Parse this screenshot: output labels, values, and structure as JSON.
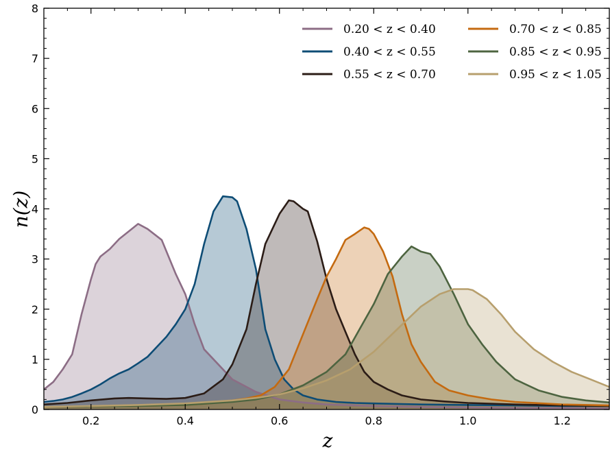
{
  "chart_data": {
    "type": "area",
    "xlabel": "z",
    "ylabel": "n(z)",
    "xlim": [
      0.1,
      1.3
    ],
    "ylim": [
      0,
      8
    ],
    "x_ticks": [
      0.2,
      0.4,
      0.6,
      0.8,
      1.0,
      1.2
    ],
    "x_tick_labels": [
      "0.2",
      "0.4",
      "0.6",
      "0.8",
      "1.0",
      "1.2"
    ],
    "y_ticks": [
      0,
      1,
      2,
      3,
      4,
      5,
      6,
      7,
      8
    ],
    "y_tick_labels": [
      "0",
      "1",
      "2",
      "3",
      "4",
      "5",
      "6",
      "7",
      "8"
    ],
    "grid": false,
    "legend_position": "top-right",
    "legend_columns": 2,
    "series": [
      {
        "name": "0.20 < z < 0.40",
        "color": "#8c6d85",
        "x": [
          0.1,
          0.12,
          0.14,
          0.16,
          0.18,
          0.2,
          0.21,
          0.22,
          0.24,
          0.26,
          0.28,
          0.3,
          0.32,
          0.35,
          0.38,
          0.4,
          0.42,
          0.44,
          0.47,
          0.5,
          0.55,
          0.6,
          0.65,
          0.7,
          0.8,
          0.9,
          1.0,
          1.1,
          1.2,
          1.3
        ],
        "y": [
          0.4,
          0.55,
          0.8,
          1.1,
          1.9,
          2.6,
          2.9,
          3.05,
          3.2,
          3.4,
          3.55,
          3.7,
          3.6,
          3.38,
          2.7,
          2.3,
          1.7,
          1.2,
          0.9,
          0.6,
          0.35,
          0.2,
          0.14,
          0.1,
          0.07,
          0.05,
          0.04,
          0.03,
          0.03,
          0.02
        ]
      },
      {
        "name": "0.40 < z < 0.55",
        "color": "#0d4c75",
        "x": [
          0.1,
          0.12,
          0.14,
          0.16,
          0.18,
          0.2,
          0.22,
          0.24,
          0.26,
          0.28,
          0.3,
          0.32,
          0.34,
          0.36,
          0.38,
          0.4,
          0.42,
          0.44,
          0.46,
          0.48,
          0.5,
          0.51,
          0.53,
          0.55,
          0.57,
          0.59,
          0.61,
          0.63,
          0.65,
          0.68,
          0.72,
          0.76,
          0.8,
          0.9,
          1.0,
          1.1,
          1.2,
          1.3
        ],
        "y": [
          0.15,
          0.17,
          0.2,
          0.25,
          0.32,
          0.4,
          0.5,
          0.62,
          0.72,
          0.8,
          0.92,
          1.05,
          1.25,
          1.45,
          1.7,
          2.0,
          2.5,
          3.3,
          3.95,
          4.25,
          4.23,
          4.15,
          3.6,
          2.8,
          1.6,
          1.0,
          0.6,
          0.4,
          0.28,
          0.2,
          0.15,
          0.13,
          0.12,
          0.1,
          0.09,
          0.08,
          0.07,
          0.07
        ]
      },
      {
        "name": "0.55 < z < 0.70",
        "color": "#2b1c16",
        "x": [
          0.1,
          0.15,
          0.2,
          0.25,
          0.28,
          0.32,
          0.36,
          0.4,
          0.44,
          0.48,
          0.5,
          0.53,
          0.55,
          0.57,
          0.58,
          0.6,
          0.62,
          0.63,
          0.65,
          0.66,
          0.68,
          0.7,
          0.72,
          0.74,
          0.76,
          0.78,
          0.8,
          0.83,
          0.86,
          0.9,
          0.95,
          1.0,
          1.1,
          1.2,
          1.3
        ],
        "y": [
          0.1,
          0.13,
          0.18,
          0.22,
          0.23,
          0.22,
          0.21,
          0.23,
          0.32,
          0.6,
          0.9,
          1.6,
          2.5,
          3.3,
          3.5,
          3.9,
          4.17,
          4.15,
          4.0,
          3.95,
          3.35,
          2.6,
          2.0,
          1.55,
          1.1,
          0.75,
          0.55,
          0.4,
          0.28,
          0.2,
          0.16,
          0.13,
          0.1,
          0.08,
          0.07
        ]
      },
      {
        "name": "0.70 < z < 0.85",
        "color": "#c46a10",
        "x": [
          0.1,
          0.2,
          0.3,
          0.4,
          0.45,
          0.5,
          0.53,
          0.56,
          0.59,
          0.62,
          0.65,
          0.68,
          0.7,
          0.72,
          0.74,
          0.76,
          0.78,
          0.79,
          0.8,
          0.82,
          0.84,
          0.86,
          0.88,
          0.9,
          0.93,
          0.96,
          1.0,
          1.05,
          1.1,
          1.2,
          1.3
        ],
        "y": [
          0.05,
          0.06,
          0.07,
          0.09,
          0.12,
          0.18,
          0.22,
          0.28,
          0.45,
          0.8,
          1.5,
          2.2,
          2.65,
          3.0,
          3.38,
          3.5,
          3.63,
          3.6,
          3.5,
          3.15,
          2.65,
          1.9,
          1.3,
          0.95,
          0.55,
          0.38,
          0.28,
          0.2,
          0.15,
          0.1,
          0.08
        ]
      },
      {
        "name": "0.85 < z < 0.95",
        "color": "#4d6440",
        "x": [
          0.1,
          0.2,
          0.3,
          0.4,
          0.5,
          0.55,
          0.6,
          0.65,
          0.7,
          0.74,
          0.77,
          0.8,
          0.83,
          0.86,
          0.88,
          0.9,
          0.92,
          0.94,
          0.97,
          1.0,
          1.03,
          1.06,
          1.1,
          1.15,
          1.2,
          1.25,
          1.3
        ],
        "y": [
          0.05,
          0.06,
          0.07,
          0.09,
          0.15,
          0.2,
          0.3,
          0.48,
          0.75,
          1.1,
          1.6,
          2.1,
          2.7,
          3.05,
          3.25,
          3.15,
          3.1,
          2.85,
          2.3,
          1.7,
          1.3,
          0.95,
          0.6,
          0.38,
          0.25,
          0.18,
          0.14
        ]
      },
      {
        "name": "0.95 < z < 1.05",
        "color": "#b79f6d",
        "x": [
          0.1,
          0.2,
          0.3,
          0.4,
          0.5,
          0.55,
          0.6,
          0.65,
          0.7,
          0.75,
          0.8,
          0.85,
          0.9,
          0.94,
          0.97,
          1.0,
          1.01,
          1.04,
          1.07,
          1.1,
          1.14,
          1.18,
          1.22,
          1.26,
          1.3
        ],
        "y": [
          0.05,
          0.07,
          0.09,
          0.12,
          0.18,
          0.23,
          0.3,
          0.42,
          0.58,
          0.8,
          1.15,
          1.6,
          2.05,
          2.3,
          2.4,
          2.4,
          2.38,
          2.2,
          1.9,
          1.55,
          1.2,
          0.95,
          0.75,
          0.6,
          0.45
        ]
      }
    ]
  }
}
